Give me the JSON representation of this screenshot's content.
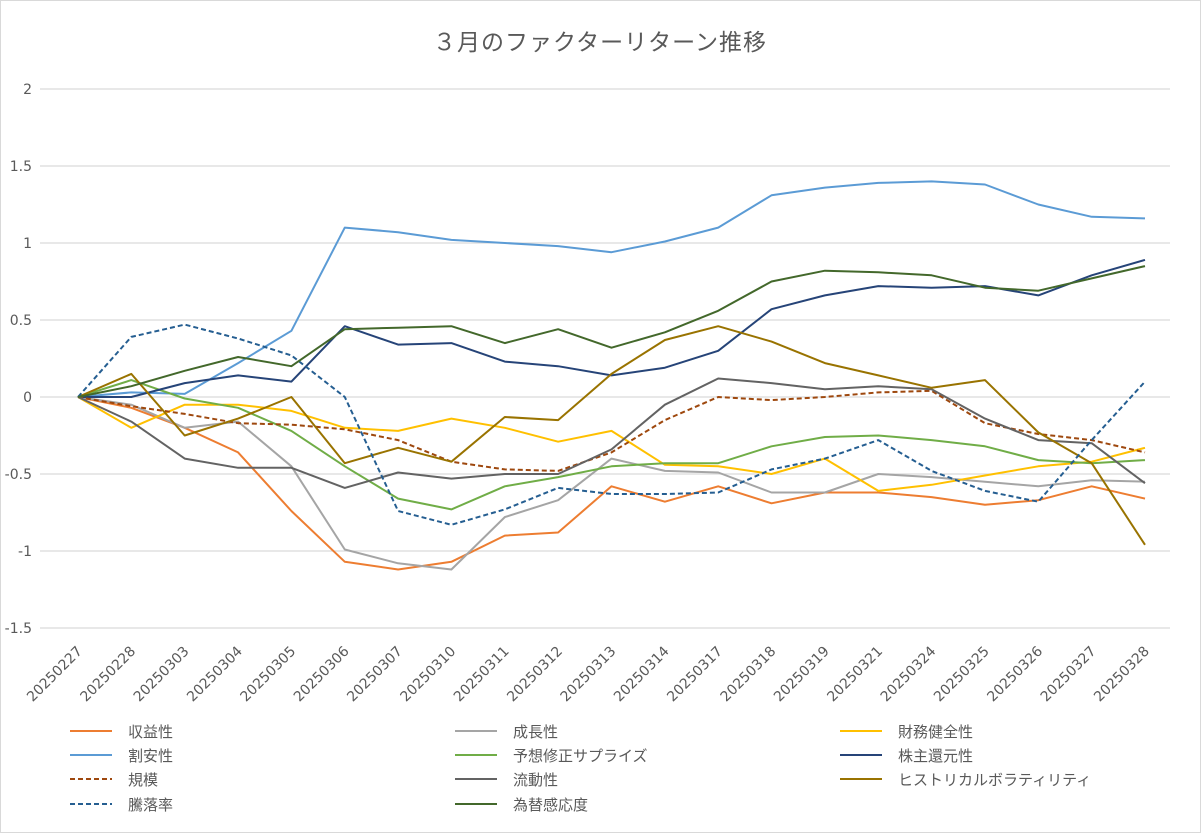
{
  "chart_data": {
    "type": "line",
    "title": "３月のファクターリターン推移",
    "xlabel": "",
    "ylabel": "",
    "ylim": [
      -1.5,
      2
    ],
    "yticks": [
      "2",
      "1.5",
      "1",
      "0.5",
      "0",
      "-0.5",
      "-1",
      "-1.5"
    ],
    "ytick_values": [
      2,
      1.5,
      1,
      0.5,
      0,
      -0.5,
      -1,
      -1.5
    ],
    "grid": true,
    "legend_position": "bottom",
    "categories": [
      "20250227",
      "20250228",
      "20250303",
      "20250304",
      "20250305",
      "20250306",
      "20250307",
      "20250310",
      "20250311",
      "20250312",
      "20250313",
      "20250314",
      "20250317",
      "20250318",
      "20250319",
      "20250321",
      "20250324",
      "20250325",
      "20250326",
      "20250327",
      "20250328"
    ],
    "series": [
      {
        "name": "収益性",
        "color": "#ED7D31",
        "dashed": false,
        "values": [
          0,
          -0.07,
          -0.2,
          -0.36,
          -0.74,
          -1.07,
          -1.12,
          -1.07,
          -0.9,
          -0.88,
          -0.58,
          -0.68,
          -0.58,
          -0.69,
          -0.62,
          -0.62,
          -0.65,
          -0.7,
          -0.67,
          -0.58,
          -0.66
        ]
      },
      {
        "name": "成長性",
        "color": "#A5A5A5",
        "dashed": false,
        "values": [
          0,
          -0.05,
          -0.2,
          -0.16,
          -0.45,
          -0.99,
          -1.08,
          -1.12,
          -0.78,
          -0.67,
          -0.4,
          -0.48,
          -0.49,
          -0.62,
          -0.62,
          -0.5,
          -0.52,
          -0.55,
          -0.58,
          -0.54,
          -0.55
        ]
      },
      {
        "name": "財務健全性",
        "color": "#FFC000",
        "dashed": false,
        "values": [
          0,
          -0.2,
          -0.05,
          -0.05,
          -0.09,
          -0.2,
          -0.22,
          -0.14,
          -0.2,
          -0.29,
          -0.22,
          -0.44,
          -0.45,
          -0.5,
          -0.4,
          -0.61,
          -0.57,
          -0.51,
          -0.45,
          -0.42,
          -0.33
        ]
      },
      {
        "name": "割安性",
        "color": "#5B9BD5",
        "dashed": false,
        "values": [
          0,
          0.03,
          0.02,
          0.22,
          0.43,
          1.1,
          1.07,
          1.02,
          1.0,
          0.98,
          0.94,
          1.01,
          1.1,
          1.31,
          1.36,
          1.39,
          1.4,
          1.38,
          1.25,
          1.17,
          1.16
        ]
      },
      {
        "name": "予想修正サプライズ",
        "color": "#70AD47",
        "dashed": false,
        "values": [
          0,
          0.11,
          -0.01,
          -0.07,
          -0.22,
          -0.45,
          -0.66,
          -0.73,
          -0.58,
          -0.52,
          -0.45,
          -0.43,
          -0.43,
          -0.32,
          -0.26,
          -0.25,
          -0.28,
          -0.32,
          -0.41,
          -0.43,
          -0.41
        ]
      },
      {
        "name": "株主還元性",
        "color": "#264478",
        "dashed": false,
        "values": [
          0,
          0,
          0.09,
          0.14,
          0.1,
          0.46,
          0.34,
          0.35,
          0.23,
          0.2,
          0.14,
          0.19,
          0.3,
          0.57,
          0.66,
          0.72,
          0.71,
          0.72,
          0.66,
          0.79,
          0.89
        ]
      },
      {
        "name": "規模",
        "color": "#9E480E",
        "dashed": true,
        "values": [
          0,
          -0.06,
          -0.11,
          -0.17,
          -0.18,
          -0.21,
          -0.28,
          -0.42,
          -0.47,
          -0.48,
          -0.36,
          -0.15,
          0.0,
          -0.02,
          0.0,
          0.03,
          0.04,
          -0.17,
          -0.24,
          -0.28,
          -0.36
        ]
      },
      {
        "name": "流動性",
        "color": "#636363",
        "dashed": false,
        "values": [
          0,
          -0.16,
          -0.4,
          -0.46,
          -0.46,
          -0.59,
          -0.49,
          -0.53,
          -0.5,
          -0.5,
          -0.34,
          -0.05,
          0.12,
          0.09,
          0.05,
          0.07,
          0.05,
          -0.14,
          -0.28,
          -0.3,
          -0.56
        ]
      },
      {
        "name": "ヒストリカルボラティリティ",
        "color": "#997300",
        "dashed": false,
        "values": [
          0,
          0.15,
          -0.25,
          -0.14,
          0.0,
          -0.43,
          -0.33,
          -0.42,
          -0.13,
          -0.15,
          0.15,
          0.37,
          0.46,
          0.36,
          0.22,
          0.14,
          0.06,
          0.11,
          -0.23,
          -0.43,
          -0.96
        ]
      },
      {
        "name": "騰落率",
        "color": "#255E91",
        "dashed": true,
        "values": [
          0,
          0.39,
          0.47,
          0.38,
          0.27,
          0.0,
          -0.74,
          -0.83,
          -0.73,
          -0.59,
          -0.63,
          -0.63,
          -0.62,
          -0.47,
          -0.4,
          -0.28,
          -0.48,
          -0.61,
          -0.68,
          -0.28,
          0.1
        ]
      },
      {
        "name": "為替感応度",
        "color": "#43682B",
        "dashed": false,
        "values": [
          0,
          0.07,
          0.17,
          0.26,
          0.2,
          0.44,
          0.45,
          0.46,
          0.35,
          0.44,
          0.32,
          0.42,
          0.56,
          0.75,
          0.82,
          0.81,
          0.79,
          0.71,
          0.69,
          0.77,
          0.85
        ]
      }
    ]
  }
}
